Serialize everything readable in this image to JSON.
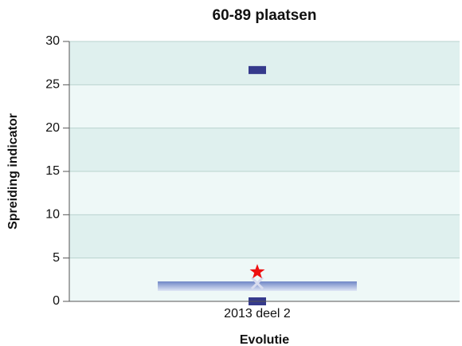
{
  "chart_data": {
    "type": "box",
    "title": "60-89 plaatsen",
    "x_label": "Evolutie",
    "y_label": "Spreiding indicator",
    "categories": [
      "2013 deel 2"
    ],
    "min": [
      0
    ],
    "max": [
      26.7
    ],
    "q1": [
      1.2
    ],
    "q3": [
      2.3
    ],
    "median": [
      2.1
    ],
    "marker": [
      3.4
    ],
    "box_color": "#6f86c6",
    "extreme_color": "#353a8c",
    "median_color": "#d8dcef",
    "marker_color": "#ee1111",
    "band_colors": [
      "#eef8f7",
      "#dff0ee"
    ],
    "ylim": [
      0,
      30
    ],
    "yticks": [
      0,
      5,
      10,
      15,
      20,
      25,
      30
    ],
    "grid": true
  }
}
